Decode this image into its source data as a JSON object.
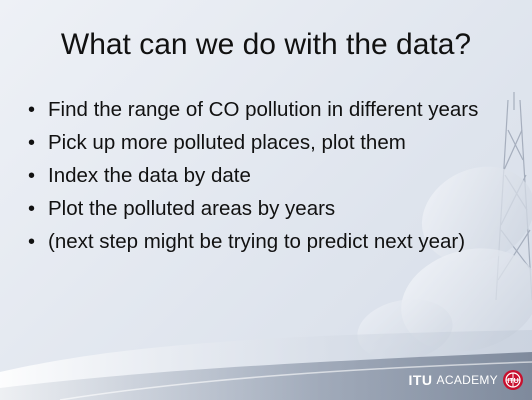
{
  "slide": {
    "title": "What can we do with the data?",
    "bullets": [
      "Find the range of CO pollution in different years",
      "Pick up more polluted places, plot them",
      "Index the data by date",
      "Plot the polluted areas by years",
      "(next step might be trying to predict next year)"
    ],
    "bullet_marker": "•"
  },
  "branding": {
    "itu": "ITU",
    "academy": "ACADEMY",
    "logo_icon": "itu-globe-logo-icon"
  },
  "colors": {
    "background_light": "#eef1f6",
    "background_dark": "#d6dde8",
    "brand_red": "#c8102e",
    "text": "#111111"
  }
}
